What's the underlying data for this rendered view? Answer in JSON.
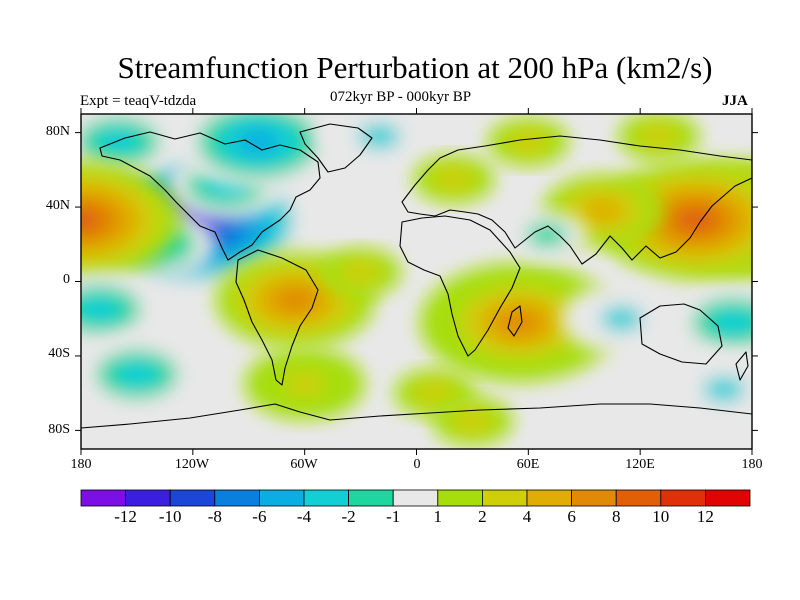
{
  "title": "Streamfunction Perturbation at 200 hPa (km2/s)",
  "experiment": "Expt = teaqV-tdzda",
  "period": "072kyr BP - 000kyr BP",
  "season": "JJA",
  "lat_ticks": [
    "80N",
    "40N",
    "0",
    "40S",
    "80S"
  ],
  "lon_ticks": [
    "180",
    "120W",
    "60W",
    "0",
    "60E",
    "120E",
    "180"
  ],
  "colorbar": {
    "labels": [
      "-12",
      "-10",
      "-8",
      "-6",
      "-4",
      "-2",
      "-1",
      "1",
      "2",
      "4",
      "6",
      "8",
      "10",
      "12"
    ],
    "colors": [
      "#7b0fe6",
      "#3c1ee0",
      "#1c46d8",
      "#0a7fdd",
      "#0aaee0",
      "#12cfd6",
      "#1fd6a0",
      "#e8e8e8",
      "#a6de0c",
      "#cfcf08",
      "#e0ad05",
      "#e08a05",
      "#e05f07",
      "#e0300a",
      "#e00404"
    ]
  },
  "map_data": {
    "projection": "cylindrical-equidistant",
    "lon_range": [
      -180,
      180
    ],
    "lat_range": [
      -90,
      90
    ],
    "fields": [
      {
        "lon": -120,
        "lat": 33,
        "value": -11
      },
      {
        "lon": -102,
        "lat": 52,
        "value": -4
      },
      {
        "lon": -85,
        "lat": 75,
        "value": -6
      },
      {
        "lon": -160,
        "lat": 75,
        "value": -4
      },
      {
        "lon": -20,
        "lat": 78,
        "value": -3
      },
      {
        "lon": -140,
        "lat": 20,
        "value": -4
      },
      {
        "lon": 180,
        "lat": 33,
        "value": 8
      },
      {
        "lon": -180,
        "lat": 33,
        "value": 8
      },
      {
        "lon": 150,
        "lat": 33,
        "value": 8
      },
      {
        "lon": 100,
        "lat": 38,
        "value": 4
      },
      {
        "lon": 60,
        "lat": 75,
        "value": 2
      },
      {
        "lon": 130,
        "lat": 78,
        "value": 2
      },
      {
        "lon": 20,
        "lat": 55,
        "value": 2
      },
      {
        "lon": -65,
        "lat": -10,
        "value": 6
      },
      {
        "lon": -30,
        "lat": 5,
        "value": 2
      },
      {
        "lon": 55,
        "lat": -22,
        "value": 7
      },
      {
        "lon": 70,
        "lat": 25,
        "value": -2
      },
      {
        "lon": 110,
        "lat": -20,
        "value": -3
      },
      {
        "lon": 170,
        "lat": -22,
        "value": -4
      },
      {
        "lon": -170,
        "lat": -15,
        "value": -4
      },
      {
        "lon": -150,
        "lat": -50,
        "value": -4
      },
      {
        "lon": 165,
        "lat": -58,
        "value": -3
      },
      {
        "lon": -60,
        "lat": -55,
        "value": 3
      },
      {
        "lon": 10,
        "lat": -60,
        "value": 2
      },
      {
        "lon": 30,
        "lat": -75,
        "value": 2
      }
    ]
  }
}
